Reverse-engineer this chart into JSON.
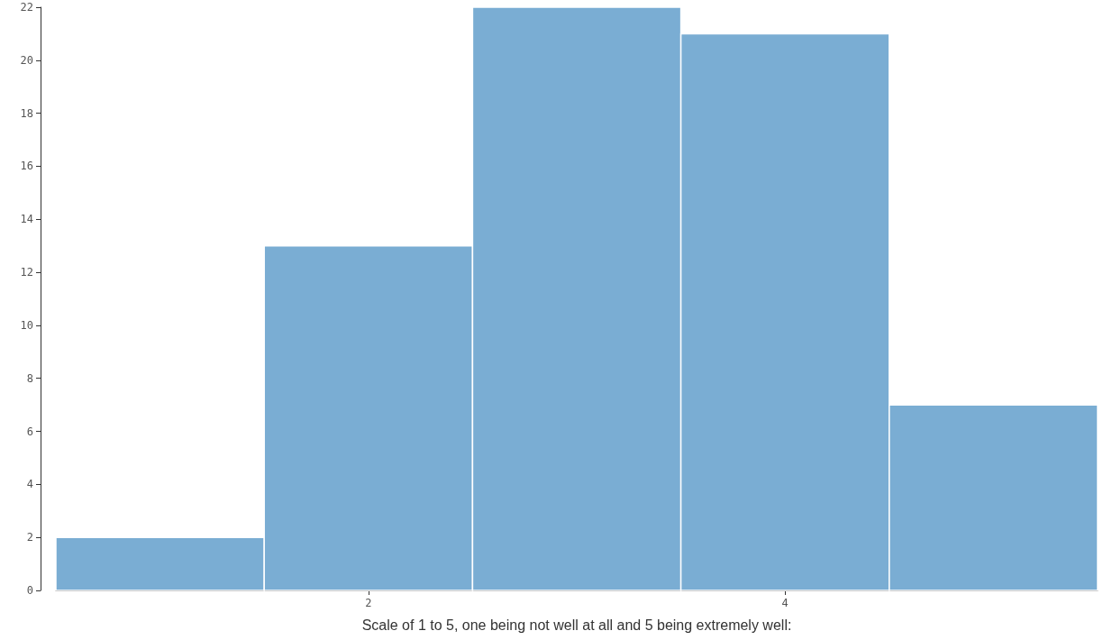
{
  "chart_data": {
    "type": "histogram",
    "xlabel": "Scale of 1 to 5, one being not well at all and 5 being extremely well:",
    "bins": [
      0.5,
      1.5,
      2.5,
      3.5,
      4.5,
      5.5
    ],
    "values": [
      2,
      13,
      22,
      21,
      7
    ],
    "color": "#7aadd3",
    "xlim": [
      0.5,
      5.5
    ],
    "xticks": [
      2,
      4
    ],
    "ylim": [
      0,
      22
    ],
    "yticks": [
      0,
      2,
      4,
      6,
      8,
      10,
      12,
      14,
      16,
      18,
      20,
      22
    ],
    "grid": false
  }
}
